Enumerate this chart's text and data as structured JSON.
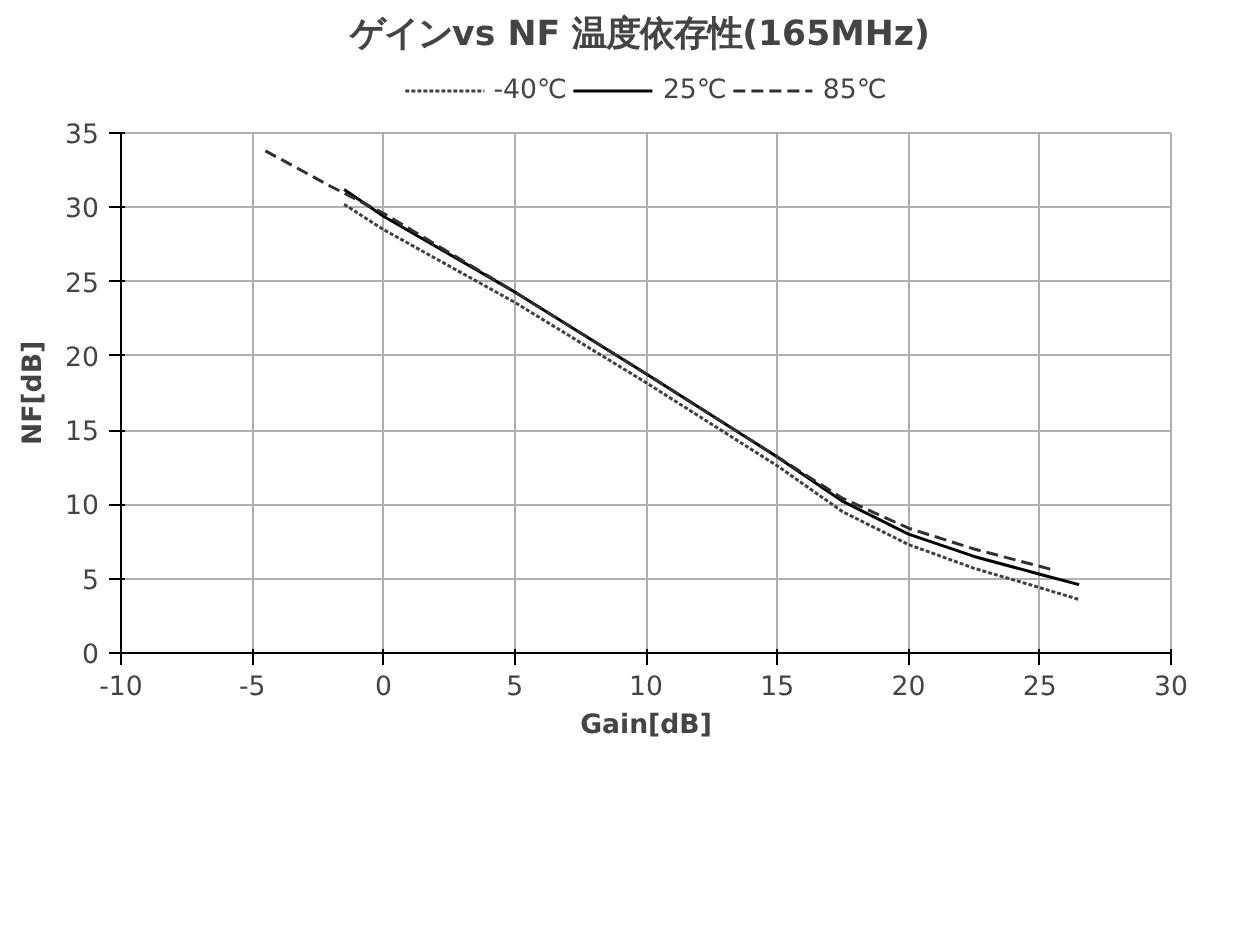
{
  "chart_data": {
    "type": "line",
    "title": "ゲインvs NF  温度依存性(165MHz)",
    "xlabel": "Gain[dB]",
    "ylabel": "NF[dB]",
    "xlim": [
      -10,
      30
    ],
    "xticks": [
      -10,
      -5,
      0,
      5,
      10,
      15,
      20,
      25,
      30
    ],
    "ylim": [
      0,
      35
    ],
    "yticks": [
      0,
      5,
      10,
      15,
      20,
      25,
      30,
      35
    ],
    "grid": true,
    "legend": "top",
    "series": [
      {
        "name": "-40℃",
        "color": "#404040",
        "line_style": "dotted",
        "x": [
          -1.5,
          0,
          5,
          10,
          15,
          17.5,
          20,
          22.5,
          25,
          26.5
        ],
        "values": [
          30.2,
          28.5,
          23.6,
          18.2,
          12.6,
          9.5,
          7.3,
          5.7,
          4.4,
          3.6
        ]
      },
      {
        "name": "25℃",
        "color": "#000000",
        "line_style": "solid",
        "x": [
          -1.5,
          0,
          5,
          10,
          15,
          17.5,
          20,
          22.5,
          25,
          26.5
        ],
        "values": [
          31.2,
          29.4,
          24.3,
          18.8,
          13.2,
          10.2,
          8.0,
          6.5,
          5.3,
          4.6
        ]
      },
      {
        "name": "85℃",
        "color": "#303030",
        "line_style": "dashed",
        "x": [
          -4.5,
          -2,
          0,
          5,
          10,
          15,
          17.5,
          20,
          22.5,
          25.5
        ],
        "values": [
          33.8,
          31.4,
          29.6,
          24.3,
          18.8,
          13.2,
          10.4,
          8.4,
          7.0,
          5.6
        ]
      }
    ]
  }
}
